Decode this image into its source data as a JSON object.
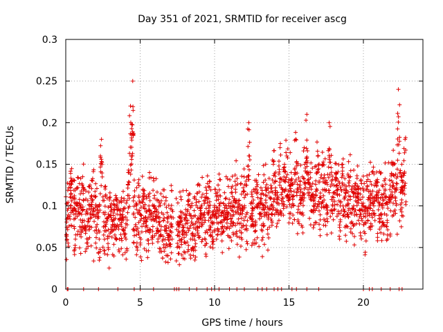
{
  "chart_data": {
    "type": "scatter",
    "title": "Day 351 of 2021, SRMTID for receiver ascg",
    "xlabel": "GPS time / hours",
    "ylabel": "SRMTID / TECUs",
    "xlim": [
      0,
      24
    ],
    "ylim": [
      0,
      0.3
    ],
    "xticks": [
      0,
      5,
      10,
      15,
      20
    ],
    "yticks": [
      0,
      0.05,
      0.1,
      0.15,
      0.2,
      0.25,
      0.3
    ],
    "xtick_labels": [
      "0",
      "5",
      "10",
      "15",
      "20"
    ],
    "ytick_labels": [
      "0",
      "0.05",
      "0.1",
      "0.15",
      "0.2",
      "0.25",
      "0.3"
    ],
    "grid": true,
    "series": [
      {
        "name": "SRMTID",
        "color": "#e00000",
        "marker": "plus",
        "x": [
          0.05,
          0.15,
          0.3,
          0.4,
          0.55,
          0.65,
          0.8,
          0.95,
          1.1,
          1.2,
          1.35,
          1.5,
          1.65,
          1.8,
          1.95,
          2.1,
          2.25,
          2.4,
          2.55,
          2.7,
          2.85,
          3.0,
          3.15,
          3.3,
          3.45,
          3.6,
          3.75,
          3.9,
          4.05,
          4.2,
          4.35,
          4.5,
          4.6,
          4.75,
          4.9,
          5.05,
          5.2,
          5.35,
          5.5,
          5.65,
          5.8,
          5.95,
          6.1,
          6.25,
          6.4,
          6.55,
          6.7,
          6.85,
          7.0,
          7.15,
          7.5,
          7.65,
          7.8,
          7.95,
          8.1,
          8.25,
          8.4,
          8.55,
          8.7,
          8.85,
          9.0,
          9.15,
          9.3,
          9.45,
          9.6,
          9.75,
          9.9,
          10.05,
          10.2,
          10.35,
          10.5,
          10.65,
          10.8,
          10.95,
          11.1,
          11.25,
          11.4,
          11.55,
          11.7,
          11.85,
          12.0,
          12.15,
          12.3,
          12.45,
          12.6,
          12.75,
          12.9,
          13.05,
          13.2,
          13.35,
          13.5,
          13.65,
          13.8,
          13.95,
          14.1,
          14.25,
          14.4,
          14.55,
          14.7,
          14.85,
          15.0,
          15.15,
          15.3,
          15.45,
          15.6,
          15.75,
          15.9,
          16.05,
          16.2,
          16.35,
          16.5,
          16.65,
          16.8,
          16.95,
          17.1,
          17.25,
          17.4,
          17.55,
          17.7,
          17.85,
          18.0,
          18.15,
          18.3,
          18.45,
          18.6,
          18.75,
          18.9,
          19.05,
          19.2,
          19.35,
          19.5,
          19.65,
          19.8,
          19.95,
          20.1,
          20.25,
          20.4,
          20.55,
          20.7,
          20.85,
          21.0,
          21.15,
          21.3,
          21.45,
          21.6,
          21.75,
          21.9,
          22.05,
          22.2,
          22.35,
          22.5,
          22.65,
          22.8
        ],
        "y": [
          0.065,
          0.085,
          0.11,
          0.13,
          0.09,
          0.06,
          0.1,
          0.075,
          0.08,
          0.12,
          0.07,
          0.06,
          0.085,
          0.13,
          0.07,
          0.09,
          0.06,
          0.18,
          0.065,
          0.08,
          0.05,
          0.1,
          0.07,
          0.065,
          0.09,
          0.06,
          0.08,
          0.07,
          0.06,
          0.14,
          0.22,
          0.25,
          0.07,
          0.065,
          0.08,
          0.06,
          0.12,
          0.075,
          0.07,
          0.09,
          0.06,
          0.1,
          0.085,
          0.08,
          0.065,
          0.06,
          0.05,
          0.04,
          0.07,
          0.06,
          0.055,
          0.05,
          0.06,
          0.045,
          0.065,
          0.07,
          0.06,
          0.05,
          0.065,
          0.07,
          0.075,
          0.09,
          0.08,
          0.07,
          0.1,
          0.085,
          0.06,
          0.09,
          0.065,
          0.1,
          0.08,
          0.075,
          0.09,
          0.1,
          0.085,
          0.08,
          0.12,
          0.095,
          0.07,
          0.1,
          0.11,
          0.09,
          0.2,
          0.085,
          0.075,
          0.08,
          0.11,
          0.09,
          0.07,
          0.1,
          0.12,
          0.09,
          0.1,
          0.15,
          0.13,
          0.11,
          0.17,
          0.12,
          0.15,
          0.16,
          0.11,
          0.14,
          0.1,
          0.18,
          0.12,
          0.13,
          0.11,
          0.15,
          0.21,
          0.14,
          0.12,
          0.1,
          0.13,
          0.16,
          0.11,
          0.15,
          0.12,
          0.1,
          0.2,
          0.13,
          0.11,
          0.14,
          0.12,
          0.1,
          0.15,
          0.11,
          0.09,
          0.13,
          0.12,
          0.1,
          0.11,
          0.12,
          0.09,
          0.1,
          0.08,
          0.12,
          0.11,
          0.09,
          0.1,
          0.13,
          0.11,
          0.09,
          0.1,
          0.12,
          0.08,
          0.11,
          0.13,
          0.15,
          0.12,
          0.24,
          0.14,
          0.13,
          0.18
        ],
        "zero_x": [
          0.1,
          0.15,
          1.2,
          2.2,
          3.5,
          4.6,
          5.0,
          5.9,
          7.3,
          7.45,
          7.6,
          8.3,
          8.8,
          9.5,
          9.8,
          10.0,
          10.3,
          11.0,
          11.5,
          12.0,
          12.9,
          13.2,
          13.5,
          14.0,
          14.25,
          14.5,
          15.2,
          15.5,
          16.2,
          17.0,
          20.0,
          20.4,
          20.6,
          21.2,
          21.8,
          22.4,
          22.6
        ]
      }
    ]
  }
}
